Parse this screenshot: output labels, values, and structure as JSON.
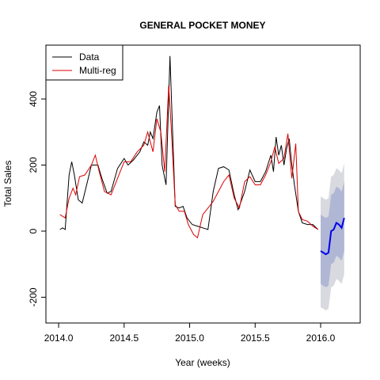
{
  "chart_data": {
    "type": "line",
    "title": "GENERAL POCKET MONEY",
    "xlabel": "Year (weeks)",
    "ylabel": "Total Sales",
    "xlim": [
      2013.903,
      2016.302
    ],
    "ylim": [
      -278,
      563
    ],
    "xticks": [
      {
        "value": 2014,
        "label": "2014.0"
      },
      {
        "value": 2014.5,
        "label": "2014.5"
      },
      {
        "value": 2015,
        "label": "2015.0"
      },
      {
        "value": 2015.5,
        "label": "2015.5"
      },
      {
        "value": 2016,
        "label": "2016.0"
      }
    ],
    "yticks": [
      -200,
      0,
      200,
      400
    ],
    "legend": "top-left",
    "series": [
      {
        "name": "Data",
        "color": "#000000",
        "x": [
          2014.01,
          2014.03,
          2014.05,
          2014.08,
          2014.1,
          2014.12,
          2014.15,
          2014.18,
          2014.22,
          2014.25,
          2014.3,
          2014.33,
          2014.37,
          2014.4,
          2014.45,
          2014.5,
          2014.53,
          2014.57,
          2014.62,
          2014.65,
          2014.68,
          2014.7,
          2014.72,
          2014.75,
          2014.77,
          2014.79,
          2014.82,
          2014.85,
          2014.87,
          2014.89,
          2014.92,
          2014.95,
          2014.98,
          2015.02,
          2015.06,
          2015.1,
          2015.14,
          2015.18,
          2015.22,
          2015.26,
          2015.3,
          2015.34,
          2015.37,
          2015.42,
          2015.46,
          2015.5,
          2015.54,
          2015.58,
          2015.62,
          2015.64,
          2015.66,
          2015.68,
          2015.7,
          2015.72,
          2015.74,
          2015.76,
          2015.78,
          2015.8,
          2015.83,
          2015.86,
          2015.9,
          2015.94,
          2015.98
        ],
        "values": [
          5,
          10,
          5,
          170,
          210,
          170,
          95,
          85,
          150,
          200,
          200,
          160,
          115,
          120,
          190,
          220,
          200,
          215,
          240,
          270,
          260,
          300,
          280,
          360,
          380,
          200,
          140,
          530,
          300,
          75,
          70,
          75,
          40,
          20,
          15,
          10,
          5,
          120,
          190,
          195,
          185,
          110,
          65,
          120,
          185,
          150,
          150,
          180,
          230,
          180,
          285,
          230,
          260,
          200,
          250,
          280,
          200,
          140,
          60,
          25,
          20,
          20,
          5
        ]
      },
      {
        "name": "Multi-reg",
        "color": "#dd0000",
        "x": [
          2014.01,
          2014.05,
          2014.08,
          2014.11,
          2014.13,
          2014.16,
          2014.2,
          2014.25,
          2014.28,
          2014.31,
          2014.35,
          2014.4,
          2014.45,
          2014.5,
          2014.55,
          2014.6,
          2014.65,
          2014.68,
          2014.72,
          2014.75,
          2014.78,
          2014.81,
          2014.84,
          2014.86,
          2014.89,
          2014.92,
          2014.96,
          2014.99,
          2015.03,
          2015.06,
          2015.1,
          2015.14,
          2015.18,
          2015.22,
          2015.26,
          2015.3,
          2015.34,
          2015.38,
          2015.42,
          2015.46,
          2015.5,
          2015.54,
          2015.58,
          2015.62,
          2015.65,
          2015.68,
          2015.72,
          2015.75,
          2015.78,
          2015.81,
          2015.83,
          2015.86,
          2015.9,
          2015.94,
          2015.98
        ],
        "values": [
          50,
          40,
          100,
          130,
          110,
          165,
          170,
          200,
          230,
          180,
          120,
          110,
          160,
          210,
          210,
          240,
          260,
          300,
          240,
          340,
          300,
          180,
          440,
          310,
          80,
          60,
          60,
          20,
          -10,
          -20,
          50,
          70,
          90,
          120,
          150,
          170,
          100,
          70,
          150,
          165,
          140,
          140,
          170,
          210,
          255,
          205,
          220,
          295,
          160,
          265,
          60,
          35,
          30,
          15,
          5
        ]
      }
    ],
    "forecast": {
      "color": "#0000ee",
      "band80_color": "#b0b7d4",
      "band95_color": "#d9dae0",
      "x": [
        2016.0,
        2016.02,
        2016.04,
        2016.06,
        2016.08,
        2016.1,
        2016.12,
        2016.14,
        2016.16,
        2016.18
      ],
      "values": [
        -60,
        -65,
        -70,
        -65,
        0,
        5,
        25,
        20,
        10,
        40
      ],
      "lo80": [
        -160,
        -165,
        -170,
        -165,
        -100,
        -95,
        -75,
        -80,
        -90,
        -60
      ],
      "hi80": [
        50,
        45,
        40,
        45,
        110,
        115,
        135,
        130,
        120,
        150
      ],
      "lo95": [
        -230,
        -235,
        -240,
        -235,
        -170,
        -165,
        -145,
        -150,
        -160,
        -130
      ],
      "hi95": [
        105,
        100,
        95,
        100,
        165,
        170,
        190,
        185,
        175,
        205
      ]
    }
  }
}
